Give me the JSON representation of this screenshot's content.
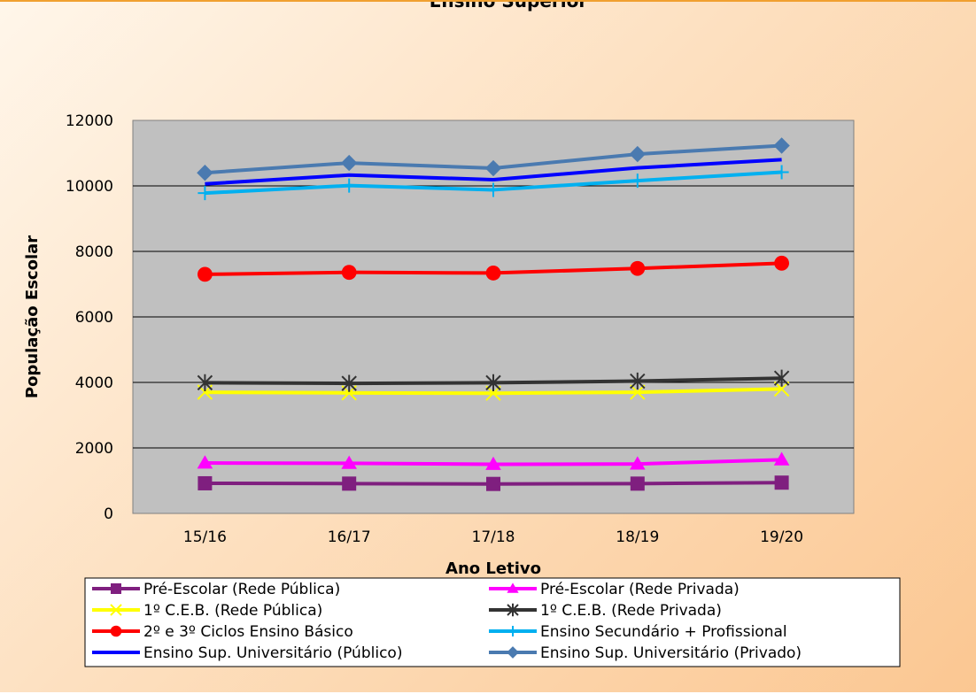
{
  "chart_data": {
    "type": "line",
    "title": "Ensino Superior",
    "xlabel": "Ano Letivo",
    "ylabel": "População Escolar",
    "categories": [
      "15/16",
      "16/17",
      "17/18",
      "18/19",
      "19/20"
    ],
    "ylim": [
      0,
      12000
    ],
    "yticks": [
      0,
      2000,
      4000,
      6000,
      8000,
      10000,
      12000
    ],
    "grid": true,
    "legend_position": "bottom",
    "series": [
      {
        "name": "Pré-Escolar (Rede Pública)",
        "color": "#7f1f7f",
        "marker": "square",
        "values": [
          920,
          910,
          900,
          910,
          940
        ]
      },
      {
        "name": "Pré-Escolar (Rede Privada)",
        "color": "#ff00ff",
        "marker": "triangle",
        "values": [
          1540,
          1530,
          1500,
          1510,
          1640
        ]
      },
      {
        "name": "1º C.E.B. (Rede Pública)",
        "color": "#ffff00",
        "marker": "x",
        "values": [
          3700,
          3680,
          3670,
          3700,
          3800
        ]
      },
      {
        "name": "1º C.E.B.  (Rede Privada)",
        "color": "#333333",
        "marker": "asterisk",
        "values": [
          3990,
          3970,
          3990,
          4040,
          4130
        ]
      },
      {
        "name": "2º e 3º Ciclos Ensino Básico",
        "color": "#ff0000",
        "marker": "circle",
        "values": [
          7300,
          7360,
          7340,
          7480,
          7640
        ]
      },
      {
        "name": "Ensino Secundário + Profissional",
        "color": "#00b0f0",
        "marker": "plus",
        "values": [
          9780,
          10010,
          9880,
          10160,
          10420
        ]
      },
      {
        "name": "Ensino Sup. Universitário  (Público)",
        "color": "#0000ff",
        "marker": "none",
        "values": [
          10060,
          10330,
          10190,
          10550,
          10800
        ]
      },
      {
        "name": "Ensino Sup. Universitário  (Privado)",
        "color": "#4a7ab0",
        "marker": "diamond",
        "values": [
          10400,
          10700,
          10540,
          10970,
          11230
        ]
      }
    ]
  }
}
